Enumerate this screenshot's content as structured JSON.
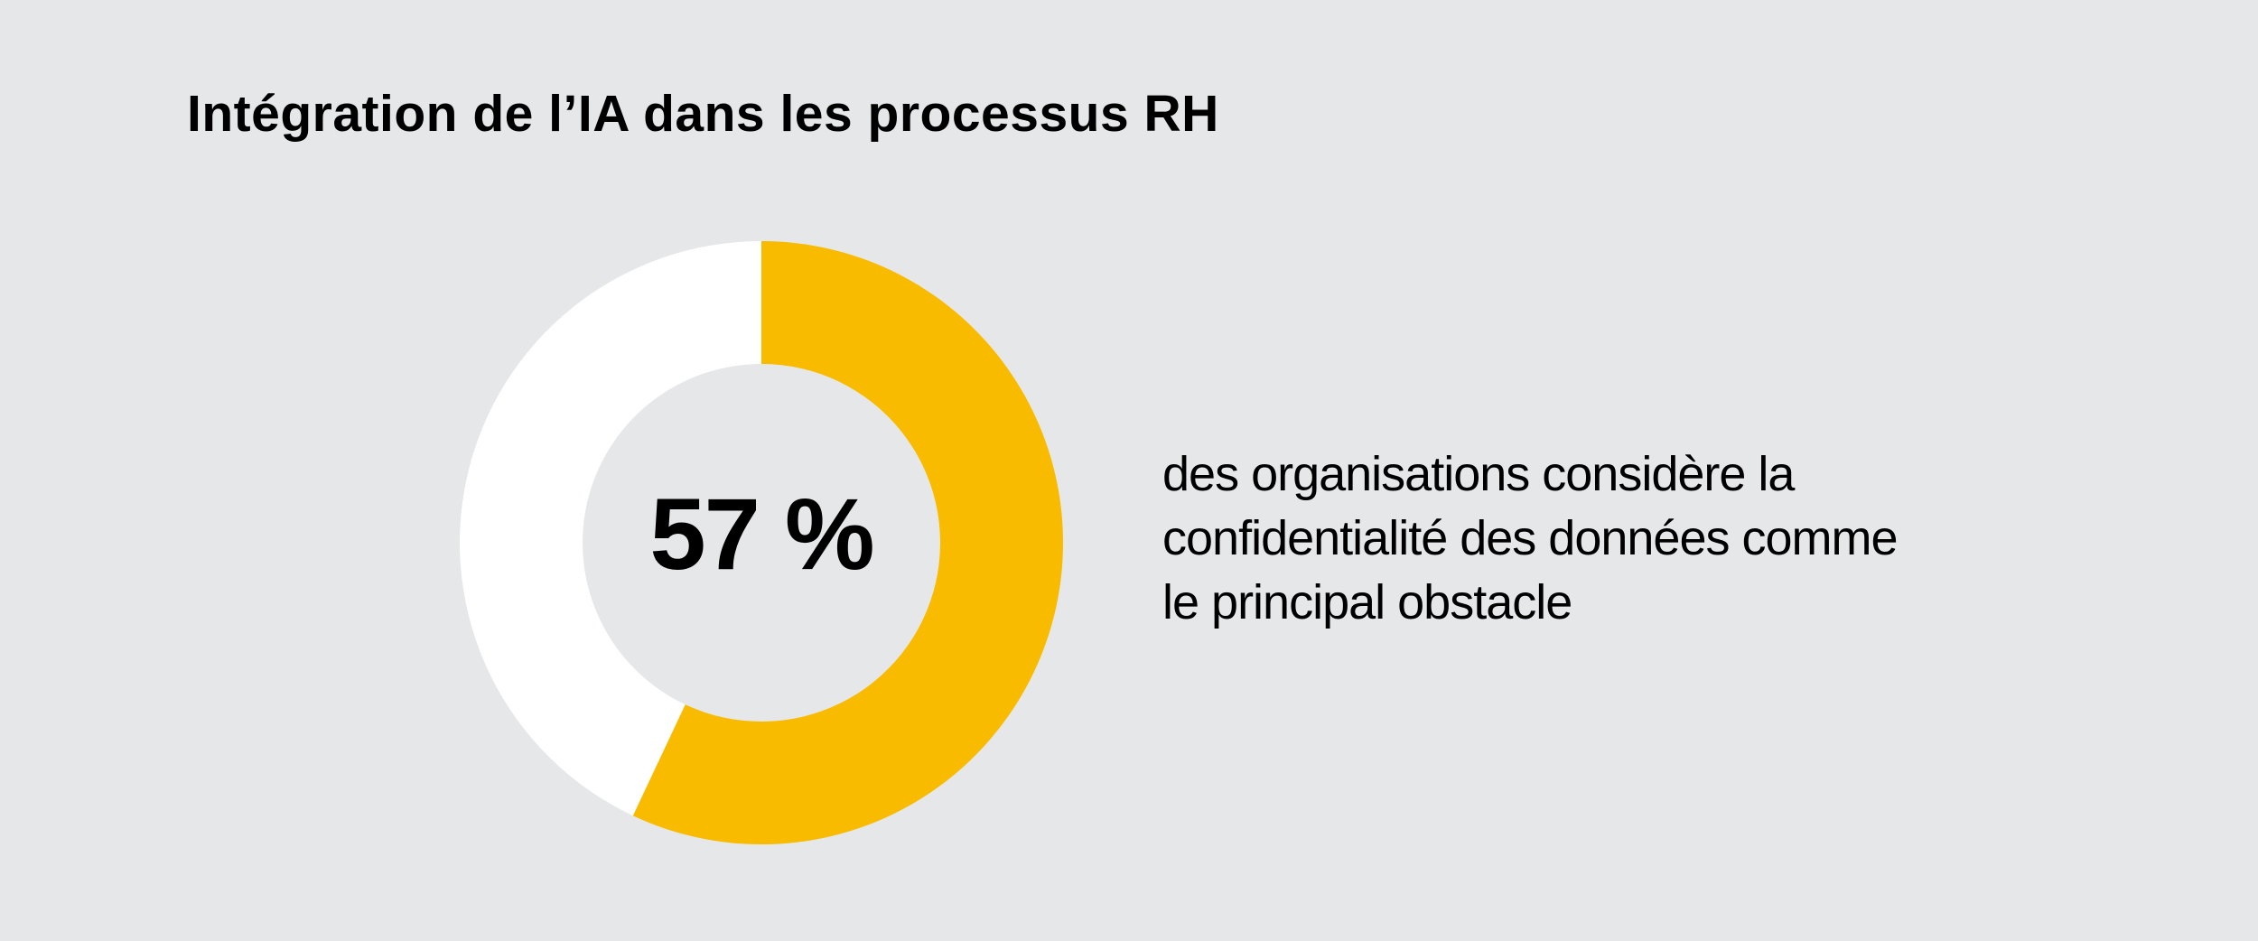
{
  "colors": {
    "background": "#e6e7e9",
    "accent": "#f8bb00",
    "remainder": "#ffffff",
    "text": "#000000"
  },
  "chart_data": {
    "type": "pie",
    "title": "Intégration de l’IA dans les processus RH",
    "center_label": "57 %",
    "slices": [
      {
        "value": 57,
        "color": "#f8bb00"
      },
      {
        "value": 43,
        "color": "#ffffff"
      }
    ],
    "description_lines": [
      "des organisations considère la",
      "confidentialité des données comme",
      "le principal obstacle"
    ]
  }
}
